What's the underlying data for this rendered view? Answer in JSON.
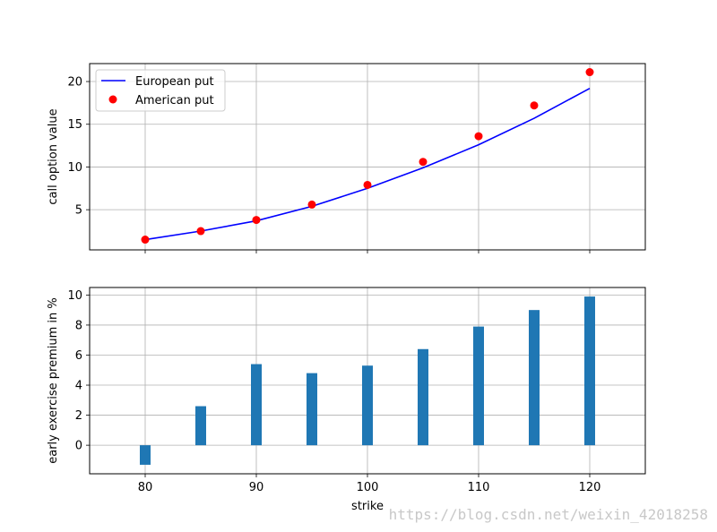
{
  "chart_data": [
    {
      "type": "line",
      "xlabel": "",
      "ylabel": "call option value",
      "xlim": [
        75,
        125
      ],
      "ylim": [
        0.3,
        22.1
      ],
      "yticks": [
        5,
        10,
        15,
        20
      ],
      "grid": true,
      "legend_position": "top-left",
      "series": [
        {
          "name": "European put",
          "style": "line",
          "color": "#0000ff",
          "x": [
            80,
            85,
            90,
            95,
            100,
            105,
            110,
            115,
            120
          ],
          "values": [
            1.5,
            2.5,
            3.7,
            5.4,
            7.5,
            9.9,
            12.6,
            15.7,
            19.2
          ]
        },
        {
          "name": "American put",
          "style": "marker",
          "color": "#ff0000",
          "x": [
            80,
            85,
            90,
            95,
            100,
            105,
            110,
            115,
            120
          ],
          "values": [
            1.5,
            2.5,
            3.8,
            5.6,
            7.9,
            10.6,
            13.6,
            17.2,
            21.1
          ]
        }
      ]
    },
    {
      "type": "bar",
      "xlabel": "strike",
      "ylabel": "early exercise premium in %",
      "xlim": [
        75,
        125
      ],
      "ylim": [
        -1.9,
        10.5
      ],
      "xticks": [
        80,
        90,
        100,
        110,
        120
      ],
      "yticks": [
        0,
        2,
        4,
        6,
        8,
        10
      ],
      "grid": true,
      "bar_color": "#1f77b4",
      "x": [
        80,
        85,
        90,
        95,
        100,
        105,
        110,
        115,
        120
      ],
      "values": [
        -1.3,
        2.6,
        5.4,
        4.8,
        5.3,
        6.4,
        7.9,
        9.0,
        9.9
      ]
    }
  ],
  "watermark": "https://blog.csdn.net/weixin_42018258"
}
